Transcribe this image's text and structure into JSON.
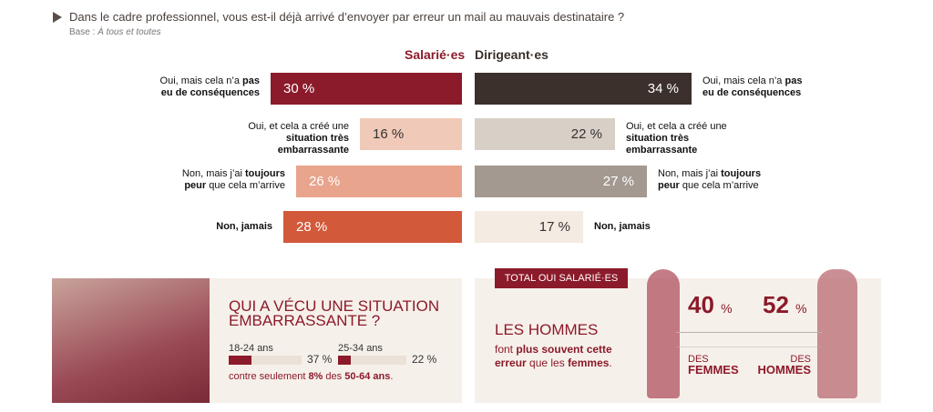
{
  "question": "Dans le cadre professionnel, vous est-il déjà arrivé d’envoyer par erreur un mail au mauvais destinataire ?",
  "base_label": "Base :",
  "base_value": "À tous et toutes",
  "chart_data": {
    "type": "bar",
    "categories": [
      {
        "pre": "Oui, mais cela n’a ",
        "bold": "pas eu de conséquences",
        "post": ""
      },
      {
        "pre": "Oui, et cela a créé une ",
        "bold": "situation très embarrassante",
        "post": ""
      },
      {
        "pre": "Non, mais j’ai ",
        "bold": "toujours peur",
        "post": " que cela m’arrive"
      },
      {
        "pre": "",
        "bold": "Non, jamais",
        "post": ""
      }
    ],
    "series": [
      {
        "name": "Salarié·es",
        "values": [
          30,
          16,
          26,
          28
        ],
        "colors": [
          "#8b1a2a",
          "#f0c9b8",
          "#e8a48c",
          "#d2593a"
        ],
        "text_colors": [
          "#fff",
          "#333",
          "#fff",
          "#fff"
        ]
      },
      {
        "name": "Dirigeant·es",
        "values": [
          34,
          22,
          27,
          17
        ],
        "colors": [
          "#3b302b",
          "#d8cfc6",
          "#a39990",
          "#f4ebe3"
        ],
        "text_colors": [
          "#fff",
          "#333",
          "#fff",
          "#333"
        ]
      }
    ],
    "unit": " %"
  },
  "left_panel": {
    "title": "QUI A VÉCU UNE SITUATION EMBARRASSANTE ?",
    "ages": [
      {
        "label": "18-24 ans",
        "value": 37,
        "text": "37 %"
      },
      {
        "label": "25-34 ans",
        "value": 22,
        "text": "22 %"
      }
    ],
    "contre_pre": "contre seulement ",
    "contre_b1": "8%",
    "contre_mid": " des ",
    "contre_b2": "50-64 ans",
    "contre_post": "."
  },
  "right_panel": {
    "tag": "TOTAL OUI SALARIÉ·ES",
    "title": "LES HOMMES",
    "d1": "font ",
    "d2": "plus souvent cette erreur",
    "d3": " que les ",
    "d4": "femmes",
    "d5": ".",
    "femmes_value": "40",
    "hommes_value": "52",
    "pct": "%",
    "des": "DES",
    "femmes": "FEMMES",
    "hommes": "HOMMES"
  }
}
